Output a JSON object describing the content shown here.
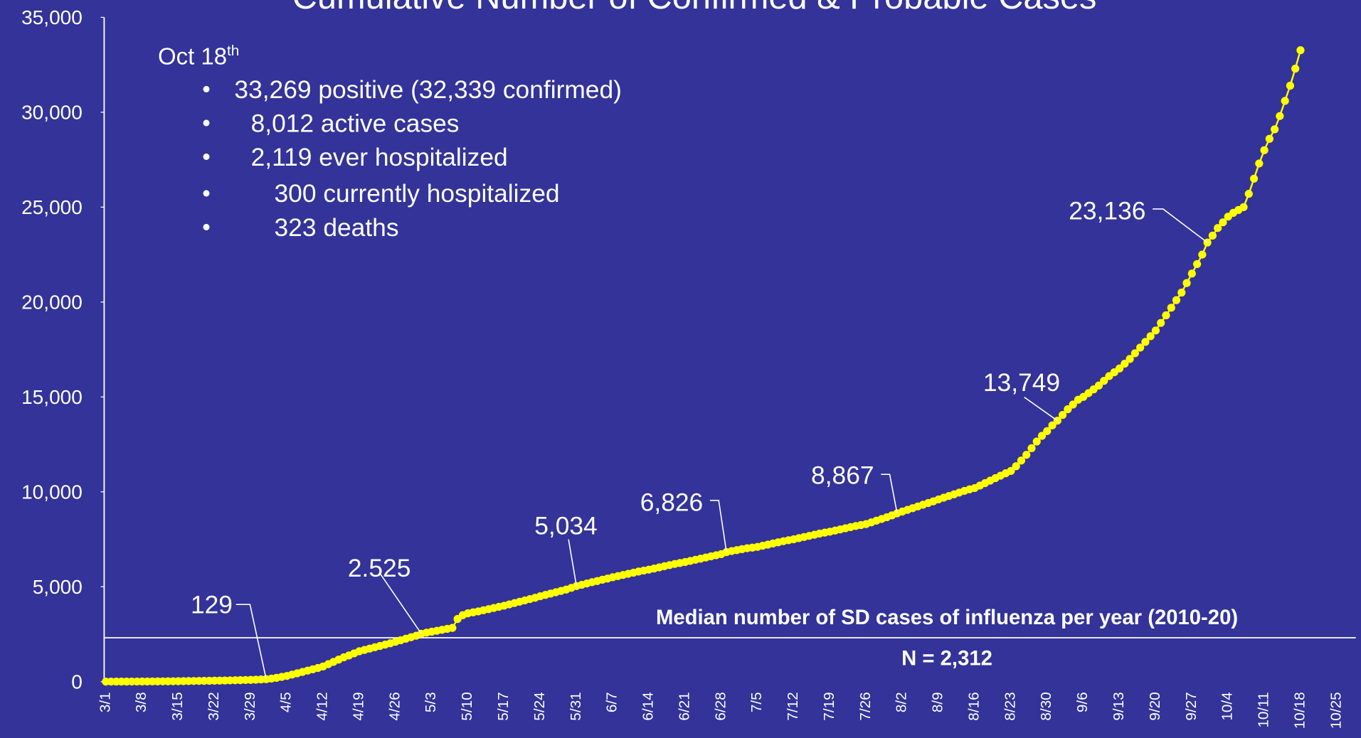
{
  "chart_data": {
    "type": "line",
    "title": "Cumulative Number of Confirmed & Probable Cases",
    "color": "#ffff00",
    "categories": [
      "3/1",
      null,
      null,
      null,
      null,
      null,
      null,
      "3/8",
      null,
      null,
      null,
      null,
      null,
      null,
      "3/15",
      null,
      null,
      null,
      null,
      null,
      null,
      "3/22",
      null,
      null,
      null,
      null,
      null,
      null,
      "3/29",
      null,
      null,
      null,
      null,
      null,
      null,
      "4/5",
      null,
      null,
      null,
      null,
      null,
      null,
      "4/12",
      null,
      null,
      null,
      null,
      null,
      null,
      "4/19",
      null,
      null,
      null,
      null,
      null,
      null,
      "4/26",
      null,
      null,
      null,
      null,
      null,
      null,
      "5/3",
      null,
      null,
      null,
      null,
      null,
      null,
      "5/10",
      null,
      null,
      null,
      null,
      null,
      null,
      "5/17",
      null,
      null,
      null,
      null,
      null,
      null,
      "5/24",
      null,
      null,
      null,
      null,
      null,
      null,
      "5/31",
      null,
      null,
      null,
      null,
      null,
      null,
      "6/7",
      null,
      null,
      null,
      null,
      null,
      null,
      "6/14",
      null,
      null,
      null,
      null,
      null,
      null,
      "6/21",
      null,
      null,
      null,
      null,
      null,
      null,
      "6/28",
      null,
      null,
      null,
      null,
      null,
      null,
      "7/5",
      null,
      null,
      null,
      null,
      null,
      null,
      "7/12",
      null,
      null,
      null,
      null,
      null,
      null,
      "7/19",
      null,
      null,
      null,
      null,
      null,
      null,
      "7/26",
      null,
      null,
      null,
      null,
      null,
      null,
      "8/2",
      null,
      null,
      null,
      null,
      null,
      null,
      "8/9",
      null,
      null,
      null,
      null,
      null,
      null,
      "8/16",
      null,
      null,
      null,
      null,
      null,
      null,
      "8/23",
      null,
      null,
      null,
      null,
      null,
      null,
      "8/30",
      null,
      null,
      null,
      null,
      null,
      null,
      "9/6",
      null,
      null,
      null,
      null,
      null,
      null,
      "9/13",
      null,
      null,
      null,
      null,
      null,
      null,
      "9/20",
      null,
      null,
      null,
      null,
      null,
      null,
      "9/27",
      null,
      null,
      null,
      null,
      null,
      null,
      "10/4",
      null,
      null,
      null,
      null,
      null,
      null,
      "10/11",
      null,
      null,
      null,
      null,
      null,
      null,
      "10/18",
      null,
      null,
      null,
      null,
      null,
      null,
      "10/25"
    ],
    "values": [
      0,
      1,
      2,
      3,
      4,
      5,
      6,
      7,
      8,
      10,
      12,
      14,
      16,
      19,
      22,
      26,
      30,
      34,
      38,
      42,
      46,
      50,
      55,
      60,
      66,
      72,
      78,
      85,
      92,
      102,
      115,
      129,
      160,
      200,
      250,
      300,
      370,
      440,
      510,
      580,
      650,
      720,
      800,
      920,
      1040,
      1160,
      1280,
      1380,
      1490,
      1600,
      1670,
      1740,
      1810,
      1880,
      1950,
      2020,
      2100,
      2180,
      2260,
      2340,
      2420,
      2525,
      2580,
      2630,
      2680,
      2730,
      2780,
      2830,
      3300,
      3500,
      3600,
      3650,
      3700,
      3760,
      3820,
      3880,
      3940,
      4000,
      4070,
      4140,
      4210,
      4280,
      4350,
      4420,
      4500,
      4570,
      4640,
      4710,
      4780,
      4850,
      4940,
      5034,
      5100,
      5170,
      5240,
      5300,
      5370,
      5430,
      5500,
      5560,
      5620,
      5680,
      5740,
      5800,
      5850,
      5900,
      5960,
      6020,
      6080,
      6140,
      6200,
      6250,
      6300,
      6360,
      6420,
      6480,
      6540,
      6600,
      6660,
      6720,
      6826,
      6880,
      6930,
      6980,
      7030,
      7060,
      7100,
      7160,
      7220,
      7280,
      7340,
      7400,
      7450,
      7500,
      7560,
      7620,
      7680,
      7740,
      7800,
      7850,
      7900,
      7960,
      8020,
      8080,
      8140,
      8200,
      8250,
      8300,
      8390,
      8480,
      8570,
      8660,
      8760,
      8867,
      8960,
      9050,
      9140,
      9230,
      9320,
      9410,
      9500,
      9600,
      9690,
      9780,
      9870,
      9960,
      10050,
      10130,
      10200,
      10330,
      10460,
      10590,
      10720,
      10850,
      10980,
      11100,
      11350,
      11650,
      11950,
      12300,
      12650,
      12950,
      13200,
      13500,
      13749,
      14050,
      14350,
      14600,
      14850,
      15000,
      15200,
      15400,
      15600,
      15850,
      16100,
      16300,
      16500,
      16750,
      17000,
      17300,
      17600,
      17900,
      18200,
      18500,
      18900,
      19300,
      19700,
      20100,
      20500,
      21000,
      21500,
      22000,
      22500,
      23136,
      23500,
      23900,
      24200,
      24500,
      24700,
      24850,
      25000,
      25700,
      26500,
      27300,
      28000,
      28600,
      29100,
      29800,
      30600,
      31400,
      32300,
      33269,
      null,
      null,
      null,
      null,
      null,
      null,
      null
    ],
    "ylim": [
      0,
      35000
    ],
    "yticks": [
      0,
      {
        "value": 5000,
        "label": "5,000"
      },
      {
        "value": 10000,
        "label": "10,000"
      },
      {
        "value": 15000,
        "label": "15,000"
      },
      {
        "value": 20000,
        "label": "20,000"
      },
      {
        "value": 25000,
        "label": "25,000"
      },
      {
        "value": 30000,
        "label": "30,000"
      },
      {
        "value": 35000,
        "label": "35,000"
      }
    ],
    "annotations": [
      "129",
      "2.525",
      "5,034",
      "6,826",
      "8,867",
      "13,749",
      "23,136"
    ],
    "reference_line": {
      "value": 2312,
      "label": "Median number of SD cases of influenza per year (2010-20)",
      "value_label": "N = 2,312"
    },
    "summary": {
      "date": "Oct 18",
      "date_suffix": "th",
      "items": [
        "33,269 positive (32,339 confirmed)",
        "8,012 active cases",
        "2,119 ever hospitalized",
        "300 currently hospitalized",
        "323 deaths"
      ]
    }
  }
}
